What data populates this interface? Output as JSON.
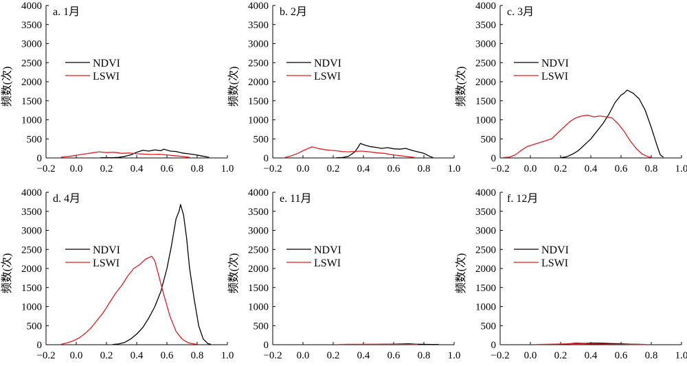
{
  "chart_data": [
    {
      "type": "line",
      "title": "a. 1月",
      "ylabel": "频数(次)",
      "xlim": [
        -0.2,
        1.0
      ],
      "ylim": [
        0,
        4000
      ],
      "xticks": [
        "−0.2",
        "0.0",
        "0.2",
        "0.4",
        "0.6",
        "0.8",
        "1.0"
      ],
      "yticks": [
        "0",
        "500",
        "1000",
        "1500",
        "2000",
        "2500",
        "3000",
        "3500",
        "4000"
      ],
      "legend_position": "middle-left",
      "series": [
        {
          "name": "NDVI",
          "color": "#000000",
          "points": [
            [
              0.16,
              5
            ],
            [
              0.2,
              5
            ],
            [
              0.24,
              5
            ],
            [
              0.28,
              15
            ],
            [
              0.32,
              40
            ],
            [
              0.36,
              80
            ],
            [
              0.4,
              150
            ],
            [
              0.44,
              200
            ],
            [
              0.48,
              180
            ],
            [
              0.52,
              210
            ],
            [
              0.56,
              190
            ],
            [
              0.58,
              230
            ],
            [
              0.62,
              180
            ],
            [
              0.66,
              170
            ],
            [
              0.7,
              130
            ],
            [
              0.74,
              110
            ],
            [
              0.78,
              90
            ],
            [
              0.82,
              60
            ],
            [
              0.86,
              30
            ],
            [
              0.88,
              10
            ]
          ]
        },
        {
          "name": "LSWI",
          "color": "#e8191c",
          "points": [
            [
              -0.1,
              20
            ],
            [
              -0.05,
              40
            ],
            [
              0.0,
              70
            ],
            [
              0.05,
              100
            ],
            [
              0.1,
              130
            ],
            [
              0.15,
              160
            ],
            [
              0.2,
              140
            ],
            [
              0.25,
              150
            ],
            [
              0.3,
              120
            ],
            [
              0.35,
              130
            ],
            [
              0.4,
              110
            ],
            [
              0.45,
              100
            ],
            [
              0.5,
              90
            ],
            [
              0.55,
              95
            ],
            [
              0.6,
              80
            ],
            [
              0.65,
              60
            ],
            [
              0.7,
              40
            ],
            [
              0.75,
              15
            ]
          ]
        }
      ]
    },
    {
      "type": "line",
      "title": "b. 2月",
      "ylabel": "频数(次)",
      "xlim": [
        -0.2,
        1.0
      ],
      "ylim": [
        0,
        4000
      ],
      "xticks": [
        "−0.2",
        "0.0",
        "0.2",
        "0.4",
        "0.6",
        "0.8",
        "1.0"
      ],
      "yticks": [
        "0",
        "500",
        "1000",
        "1500",
        "2000",
        "2500",
        "3000",
        "3500",
        "4000"
      ],
      "legend_position": "top-center",
      "series": [
        {
          "name": "NDVI",
          "color": "#000000",
          "points": [
            [
              0.22,
              5
            ],
            [
              0.26,
              10
            ],
            [
              0.3,
              40
            ],
            [
              0.34,
              150
            ],
            [
              0.36,
              250
            ],
            [
              0.38,
              380
            ],
            [
              0.4,
              350
            ],
            [
              0.44,
              300
            ],
            [
              0.48,
              280
            ],
            [
              0.52,
              250
            ],
            [
              0.56,
              270
            ],
            [
              0.6,
              240
            ],
            [
              0.64,
              230
            ],
            [
              0.68,
              250
            ],
            [
              0.72,
              200
            ],
            [
              0.76,
              160
            ],
            [
              0.8,
              120
            ],
            [
              0.84,
              40
            ],
            [
              0.86,
              10
            ]
          ]
        },
        {
          "name": "LSWI",
          "color": "#e8191c",
          "points": [
            [
              -0.12,
              10
            ],
            [
              -0.08,
              50
            ],
            [
              -0.04,
              110
            ],
            [
              0.0,
              190
            ],
            [
              0.04,
              260
            ],
            [
              0.06,
              290
            ],
            [
              0.1,
              250
            ],
            [
              0.14,
              220
            ],
            [
              0.18,
              200
            ],
            [
              0.22,
              190
            ],
            [
              0.26,
              170
            ],
            [
              0.3,
              160
            ],
            [
              0.34,
              170
            ],
            [
              0.38,
              180
            ],
            [
              0.42,
              170
            ],
            [
              0.46,
              150
            ],
            [
              0.5,
              130
            ],
            [
              0.54,
              120
            ],
            [
              0.58,
              90
            ],
            [
              0.62,
              70
            ],
            [
              0.66,
              50
            ],
            [
              0.7,
              30
            ],
            [
              0.74,
              10
            ]
          ]
        }
      ]
    },
    {
      "type": "line",
      "title": "c. 3月",
      "ylabel": "频数(次)",
      "xlim": [
        -0.2,
        1.0
      ],
      "ylim": [
        0,
        4000
      ],
      "xticks": [
        "−0.2",
        "0.0",
        "0.2",
        "0.4",
        "0.6",
        "0.8",
        "1.0"
      ],
      "yticks": [
        "0",
        "500",
        "1000",
        "1500",
        "2000",
        "2500",
        "3000",
        "3500",
        "4000"
      ],
      "legend_position": "top-right",
      "series": [
        {
          "name": "NDVI",
          "color": "#000000",
          "points": [
            [
              0.2,
              5
            ],
            [
              0.24,
              30
            ],
            [
              0.28,
              100
            ],
            [
              0.32,
              200
            ],
            [
              0.36,
              350
            ],
            [
              0.4,
              500
            ],
            [
              0.44,
              700
            ],
            [
              0.48,
              900
            ],
            [
              0.52,
              1150
            ],
            [
              0.56,
              1450
            ],
            [
              0.6,
              1650
            ],
            [
              0.62,
              1700
            ],
            [
              0.64,
              1780
            ],
            [
              0.66,
              1740
            ],
            [
              0.68,
              1700
            ],
            [
              0.72,
              1550
            ],
            [
              0.76,
              1250
            ],
            [
              0.8,
              800
            ],
            [
              0.84,
              300
            ],
            [
              0.86,
              80
            ],
            [
              0.88,
              20
            ]
          ]
        },
        {
          "name": "LSWI",
          "color": "#e8191c",
          "points": [
            [
              -0.18,
              10
            ],
            [
              -0.14,
              20
            ],
            [
              -0.1,
              80
            ],
            [
              -0.06,
              200
            ],
            [
              -0.02,
              300
            ],
            [
              0.02,
              350
            ],
            [
              0.06,
              400
            ],
            [
              0.1,
              450
            ],
            [
              0.14,
              500
            ],
            [
              0.18,
              650
            ],
            [
              0.22,
              800
            ],
            [
              0.26,
              950
            ],
            [
              0.3,
              1050
            ],
            [
              0.34,
              1100
            ],
            [
              0.38,
              1120
            ],
            [
              0.42,
              1080
            ],
            [
              0.46,
              1100
            ],
            [
              0.5,
              1080
            ],
            [
              0.54,
              1050
            ],
            [
              0.58,
              900
            ],
            [
              0.62,
              700
            ],
            [
              0.66,
              450
            ],
            [
              0.7,
              250
            ],
            [
              0.74,
              100
            ],
            [
              0.78,
              30
            ],
            [
              0.8,
              10
            ]
          ]
        }
      ]
    },
    {
      "type": "line",
      "title": "d. 4月",
      "ylabel": "频数(次)",
      "xlim": [
        -0.2,
        1.0
      ],
      "ylim": [
        0,
        4000
      ],
      "xticks": [
        "−0.2",
        "0.0",
        "0.2",
        "0.4",
        "0.6",
        "0.8",
        "1.0"
      ],
      "yticks": [
        "0",
        "500",
        "1000",
        "1500",
        "2000",
        "2500",
        "3000",
        "3500",
        "4000"
      ],
      "legend_position": "middle-left",
      "series": [
        {
          "name": "NDVI",
          "color": "#000000",
          "points": [
            [
              0.24,
              5
            ],
            [
              0.28,
              20
            ],
            [
              0.32,
              60
            ],
            [
              0.36,
              150
            ],
            [
              0.4,
              280
            ],
            [
              0.44,
              450
            ],
            [
              0.48,
              700
            ],
            [
              0.52,
              1000
            ],
            [
              0.56,
              1400
            ],
            [
              0.6,
              2000
            ],
            [
              0.63,
              2600
            ],
            [
              0.66,
              3300
            ],
            [
              0.68,
              3500
            ],
            [
              0.69,
              3680
            ],
            [
              0.71,
              3400
            ],
            [
              0.73,
              2800
            ],
            [
              0.75,
              2000
            ],
            [
              0.78,
              1200
            ],
            [
              0.81,
              500
            ],
            [
              0.84,
              150
            ],
            [
              0.87,
              30
            ],
            [
              0.89,
              10
            ]
          ]
        },
        {
          "name": "LSWI",
          "color": "#e8191c",
          "points": [
            [
              -0.1,
              10
            ],
            [
              -0.06,
              50
            ],
            [
              -0.02,
              100
            ],
            [
              0.02,
              180
            ],
            [
              0.06,
              300
            ],
            [
              0.1,
              450
            ],
            [
              0.14,
              650
            ],
            [
              0.18,
              850
            ],
            [
              0.22,
              1100
            ],
            [
              0.26,
              1350
            ],
            [
              0.3,
              1550
            ],
            [
              0.34,
              1800
            ],
            [
              0.38,
              2000
            ],
            [
              0.42,
              2100
            ],
            [
              0.46,
              2250
            ],
            [
              0.5,
              2320
            ],
            [
              0.52,
              2200
            ],
            [
              0.54,
              1900
            ],
            [
              0.58,
              1300
            ],
            [
              0.62,
              750
            ],
            [
              0.66,
              350
            ],
            [
              0.7,
              150
            ],
            [
              0.74,
              50
            ],
            [
              0.78,
              20
            ],
            [
              0.8,
              10
            ]
          ]
        }
      ]
    },
    {
      "type": "line",
      "title": "e. 11月",
      "ylabel": "频数(次)",
      "xlim": [
        -0.2,
        1.0
      ],
      "ylim": [
        0,
        4000
      ],
      "xticks": [
        "−0.2",
        "0.0",
        "0.2",
        "0.4",
        "0.6",
        "0.8",
        "1.0"
      ],
      "yticks": [
        "0",
        "500",
        "1000",
        "1500",
        "2000",
        "2500",
        "3000",
        "3500",
        "4000"
      ],
      "legend_position": "middle-center",
      "series": [
        {
          "name": "NDVI",
          "color": "#000000",
          "points": [
            [
              0.24,
              2
            ],
            [
              0.3,
              5
            ],
            [
              0.36,
              5
            ],
            [
              0.42,
              8
            ],
            [
              0.48,
              10
            ],
            [
              0.54,
              12
            ],
            [
              0.6,
              15
            ],
            [
              0.66,
              20
            ],
            [
              0.7,
              25
            ],
            [
              0.74,
              15
            ],
            [
              0.8,
              10
            ],
            [
              0.86,
              8
            ],
            [
              0.9,
              5
            ]
          ]
        },
        {
          "name": "LSWI",
          "color": "#e8191c",
          "points": [
            [
              0.24,
              5
            ],
            [
              0.3,
              10
            ],
            [
              0.36,
              10
            ],
            [
              0.42,
              12
            ],
            [
              0.48,
              10
            ],
            [
              0.54,
              12
            ],
            [
              0.6,
              10
            ],
            [
              0.66,
              8
            ],
            [
              0.72,
              5
            ],
            [
              0.76,
              3
            ]
          ]
        }
      ]
    },
    {
      "type": "line",
      "title": "f. 12月",
      "ylabel": "频数(次)",
      "xlim": [
        -0.2,
        1.0
      ],
      "ylim": [
        0,
        4000
      ],
      "xticks": [
        "−0.2",
        "0.0",
        "0.2",
        "0.4",
        "0.6",
        "0.8",
        "1.0"
      ],
      "yticks": [
        "0",
        "500",
        "1000",
        "1500",
        "2000",
        "2500",
        "3000",
        "3500",
        "4000"
      ],
      "legend_position": "middle-center",
      "series": [
        {
          "name": "NDVI",
          "color": "#000000",
          "points": [
            [
              0.12,
              5
            ],
            [
              0.18,
              10
            ],
            [
              0.24,
              20
            ],
            [
              0.3,
              40
            ],
            [
              0.36,
              35
            ],
            [
              0.42,
              45
            ],
            [
              0.48,
              40
            ],
            [
              0.54,
              30
            ],
            [
              0.6,
              25
            ],
            [
              0.66,
              15
            ],
            [
              0.72,
              10
            ],
            [
              0.76,
              5
            ]
          ]
        },
        {
          "name": "LSWI",
          "color": "#e8191c",
          "points": [
            [
              0.04,
              5
            ],
            [
              0.1,
              10
            ],
            [
              0.16,
              15
            ],
            [
              0.22,
              20
            ],
            [
              0.28,
              25
            ],
            [
              0.34,
              25
            ],
            [
              0.4,
              20
            ],
            [
              0.46,
              20
            ],
            [
              0.52,
              15
            ],
            [
              0.58,
              10
            ],
            [
              0.64,
              10
            ],
            [
              0.7,
              5
            ],
            [
              0.76,
              3
            ]
          ]
        }
      ]
    }
  ]
}
